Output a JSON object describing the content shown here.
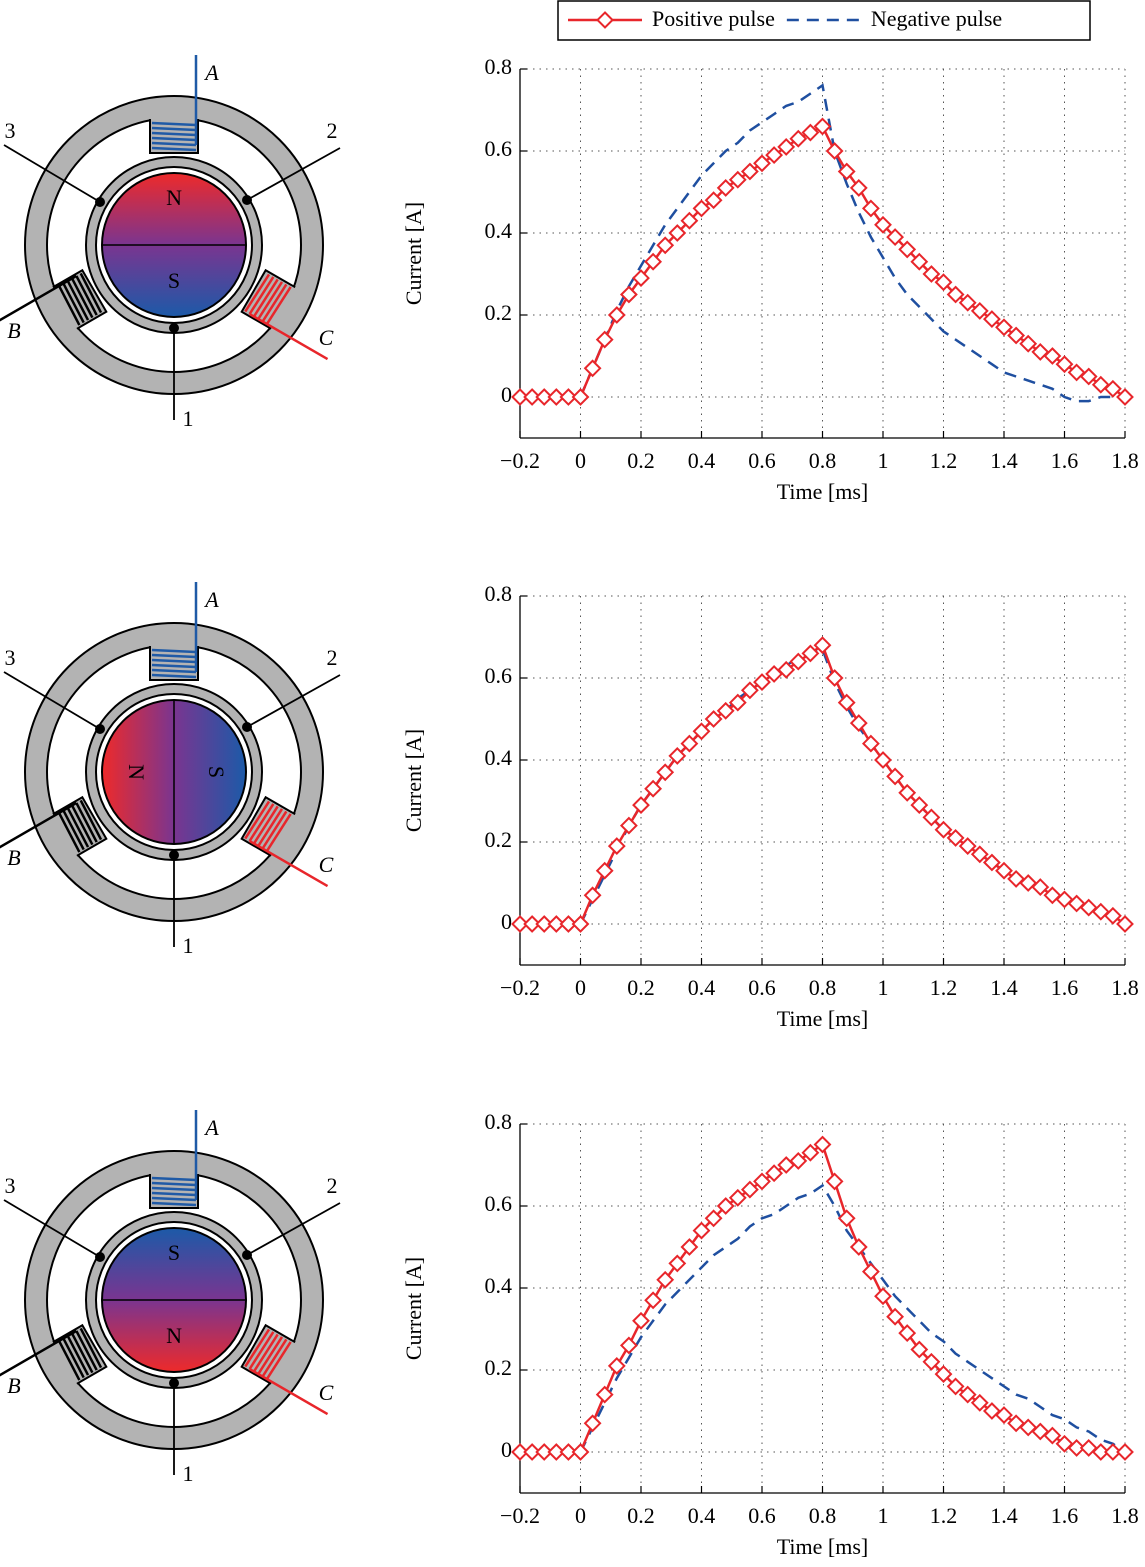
{
  "motors": [
    {
      "phase_a": "A",
      "phase_b": "B",
      "phase_c": "C",
      "terminal_1": "1",
      "terminal_2": "2",
      "terminal_3": "3",
      "north": "N",
      "south": "S"
    },
    {
      "phase_a": "A",
      "phase_b": "B",
      "phase_c": "C",
      "terminal_1": "1",
      "terminal_2": "2",
      "terminal_3": "3",
      "north": "N",
      "south": "S"
    },
    {
      "phase_a": "A",
      "phase_b": "B",
      "phase_c": "C",
      "terminal_1": "1",
      "terminal_2": "2",
      "terminal_3": "3",
      "north": "N",
      "south": "S"
    }
  ],
  "chart_data": [
    {
      "type": "line",
      "xlabel": "Time [ms]",
      "ylabel": "Current [A]",
      "legend": "top",
      "grid": true,
      "xlim": [
        -0.2,
        1.8
      ],
      "ylim": [
        -0.1,
        0.8
      ],
      "xticks": [
        {
          "value": -0.2,
          "label": "−0.2"
        },
        0,
        0.2,
        0.4,
        0.6,
        0.8,
        1,
        1.2,
        1.4,
        1.6,
        1.8
      ],
      "yticks": [
        0,
        0.2,
        0.4,
        0.6,
        0.8
      ],
      "x": [
        -0.2,
        -0.16,
        -0.12,
        -0.08,
        -0.04,
        0,
        0.04,
        0.08,
        0.12,
        0.16,
        0.2,
        0.24,
        0.28,
        0.32,
        0.36,
        0.4,
        0.44,
        0.48,
        0.52,
        0.56,
        0.6,
        0.64,
        0.68,
        0.72,
        0.76,
        0.8,
        0.84,
        0.88,
        0.92,
        0.96,
        1,
        1.04,
        1.08,
        1.12,
        1.16,
        1.2,
        1.24,
        1.28,
        1.32,
        1.36,
        1.4,
        1.44,
        1.48,
        1.52,
        1.56,
        1.6,
        1.64,
        1.68,
        1.72,
        1.76,
        1.8
      ],
      "series": [
        {
          "name": "Positive pulse",
          "color": "#e8262b",
          "marker": "diamond",
          "dash": "solid",
          "values": [
            0,
            0,
            0,
            0,
            0,
            0,
            0.07,
            0.14,
            0.2,
            0.25,
            0.29,
            0.33,
            0.37,
            0.4,
            0.43,
            0.46,
            0.48,
            0.51,
            0.53,
            0.55,
            0.57,
            0.59,
            0.61,
            0.63,
            0.645,
            0.66,
            0.6,
            0.55,
            0.51,
            0.46,
            0.42,
            0.39,
            0.36,
            0.33,
            0.3,
            0.28,
            0.25,
            0.23,
            0.21,
            0.19,
            0.17,
            0.15,
            0.13,
            0.11,
            0.1,
            0.08,
            0.06,
            0.05,
            0.03,
            0.02,
            0
          ]
        },
        {
          "name": "Negative pulse",
          "color": "#1f4fa0",
          "marker": "none",
          "dash": "dashed",
          "values": [
            0,
            0,
            0,
            0,
            0,
            0,
            0.07,
            0.14,
            0.21,
            0.27,
            0.32,
            0.37,
            0.42,
            0.46,
            0.5,
            0.54,
            0.57,
            0.6,
            0.62,
            0.65,
            0.67,
            0.69,
            0.71,
            0.72,
            0.74,
            0.76,
            0.6,
            0.52,
            0.45,
            0.39,
            0.34,
            0.29,
            0.25,
            0.22,
            0.19,
            0.16,
            0.14,
            0.12,
            0.1,
            0.08,
            0.06,
            0.05,
            0.04,
            0.03,
            0.02,
            0,
            -0.01,
            -0.01,
            0,
            0,
            0
          ]
        }
      ]
    },
    {
      "type": "line",
      "xlabel": "Time [ms]",
      "ylabel": "Current [A]",
      "grid": true,
      "xlim": [
        -0.2,
        1.8
      ],
      "ylim": [
        -0.1,
        0.8
      ],
      "xticks": [
        {
          "value": -0.2,
          "label": "−0.2"
        },
        0,
        0.2,
        0.4,
        0.6,
        0.8,
        1,
        1.2,
        1.4,
        1.6,
        1.8
      ],
      "yticks": [
        0,
        0.2,
        0.4,
        0.6,
        0.8
      ],
      "x": [
        -0.2,
        -0.16,
        -0.12,
        -0.08,
        -0.04,
        0,
        0.04,
        0.08,
        0.12,
        0.16,
        0.2,
        0.24,
        0.28,
        0.32,
        0.36,
        0.4,
        0.44,
        0.48,
        0.52,
        0.56,
        0.6,
        0.64,
        0.68,
        0.72,
        0.76,
        0.8,
        0.84,
        0.88,
        0.92,
        0.96,
        1,
        1.04,
        1.08,
        1.12,
        1.16,
        1.2,
        1.24,
        1.28,
        1.32,
        1.36,
        1.4,
        1.44,
        1.48,
        1.52,
        1.56,
        1.6,
        1.64,
        1.68,
        1.72,
        1.76,
        1.8
      ],
      "series": [
        {
          "color": "#e8262b",
          "marker": "diamond",
          "dash": "solid",
          "values": [
            0,
            0,
            0,
            0,
            0,
            0,
            0.07,
            0.13,
            0.19,
            0.24,
            0.29,
            0.33,
            0.37,
            0.41,
            0.44,
            0.47,
            0.5,
            0.52,
            0.54,
            0.57,
            0.59,
            0.61,
            0.62,
            0.64,
            0.66,
            0.68,
            0.6,
            0.54,
            0.49,
            0.44,
            0.4,
            0.36,
            0.32,
            0.29,
            0.26,
            0.23,
            0.21,
            0.19,
            0.17,
            0.15,
            0.13,
            0.11,
            0.1,
            0.09,
            0.07,
            0.06,
            0.05,
            0.04,
            0.03,
            0.02,
            0
          ]
        },
        {
          "color": "#1f4fa0",
          "marker": "none",
          "dash": "dashed",
          "values": [
            0,
            0,
            0,
            0,
            0,
            0,
            0.06,
            0.12,
            0.18,
            0.24,
            0.29,
            0.33,
            0.37,
            0.41,
            0.44,
            0.47,
            0.5,
            0.52,
            0.55,
            0.57,
            0.59,
            0.61,
            0.63,
            0.65,
            0.66,
            0.67,
            0.59,
            0.53,
            0.48,
            0.44,
            0.4,
            0.36,
            0.32,
            0.29,
            0.26,
            0.23,
            0.21,
            0.19,
            0.17,
            0.15,
            0.13,
            0.12,
            0.1,
            0.09,
            0.08,
            0.06,
            0.05,
            0.04,
            0.03,
            0.02,
            0.01
          ]
        }
      ]
    },
    {
      "type": "line",
      "xlabel": "Time [ms]",
      "ylabel": "Current [A]",
      "grid": true,
      "xlim": [
        -0.2,
        1.8
      ],
      "ylim": [
        -0.1,
        0.8
      ],
      "xticks": [
        {
          "value": -0.2,
          "label": "−0.2"
        },
        0,
        0.2,
        0.4,
        0.6,
        0.8,
        1,
        1.2,
        1.4,
        1.6,
        1.8
      ],
      "yticks": [
        0,
        0.2,
        0.4,
        0.6,
        0.8
      ],
      "x": [
        -0.2,
        -0.16,
        -0.12,
        -0.08,
        -0.04,
        0,
        0.04,
        0.08,
        0.12,
        0.16,
        0.2,
        0.24,
        0.28,
        0.32,
        0.36,
        0.4,
        0.44,
        0.48,
        0.52,
        0.56,
        0.6,
        0.64,
        0.68,
        0.72,
        0.76,
        0.8,
        0.84,
        0.88,
        0.92,
        0.96,
        1,
        1.04,
        1.08,
        1.12,
        1.16,
        1.2,
        1.24,
        1.28,
        1.32,
        1.36,
        1.4,
        1.44,
        1.48,
        1.52,
        1.56,
        1.6,
        1.64,
        1.68,
        1.72,
        1.76,
        1.8
      ],
      "series": [
        {
          "color": "#e8262b",
          "marker": "diamond",
          "dash": "solid",
          "values": [
            0,
            0,
            0,
            0,
            0,
            0,
            0.07,
            0.14,
            0.21,
            0.26,
            0.32,
            0.37,
            0.42,
            0.46,
            0.5,
            0.54,
            0.57,
            0.6,
            0.62,
            0.64,
            0.66,
            0.68,
            0.7,
            0.71,
            0.73,
            0.75,
            0.66,
            0.57,
            0.5,
            0.44,
            0.38,
            0.33,
            0.29,
            0.25,
            0.22,
            0.19,
            0.16,
            0.14,
            0.12,
            0.1,
            0.09,
            0.07,
            0.06,
            0.05,
            0.04,
            0.02,
            0.01,
            0.01,
            0,
            0,
            0
          ]
        },
        {
          "color": "#1f4fa0",
          "marker": "none",
          "dash": "dashed",
          "values": [
            0,
            0,
            0,
            0,
            0,
            0,
            0.06,
            0.12,
            0.18,
            0.23,
            0.28,
            0.32,
            0.36,
            0.39,
            0.42,
            0.45,
            0.48,
            0.5,
            0.52,
            0.55,
            0.57,
            0.58,
            0.6,
            0.62,
            0.63,
            0.65,
            0.6,
            0.54,
            0.5,
            0.46,
            0.42,
            0.38,
            0.35,
            0.32,
            0.29,
            0.27,
            0.24,
            0.22,
            0.2,
            0.18,
            0.16,
            0.14,
            0.13,
            0.11,
            0.09,
            0.08,
            0.06,
            0.05,
            0.03,
            0.02,
            0
          ]
        }
      ]
    }
  ]
}
